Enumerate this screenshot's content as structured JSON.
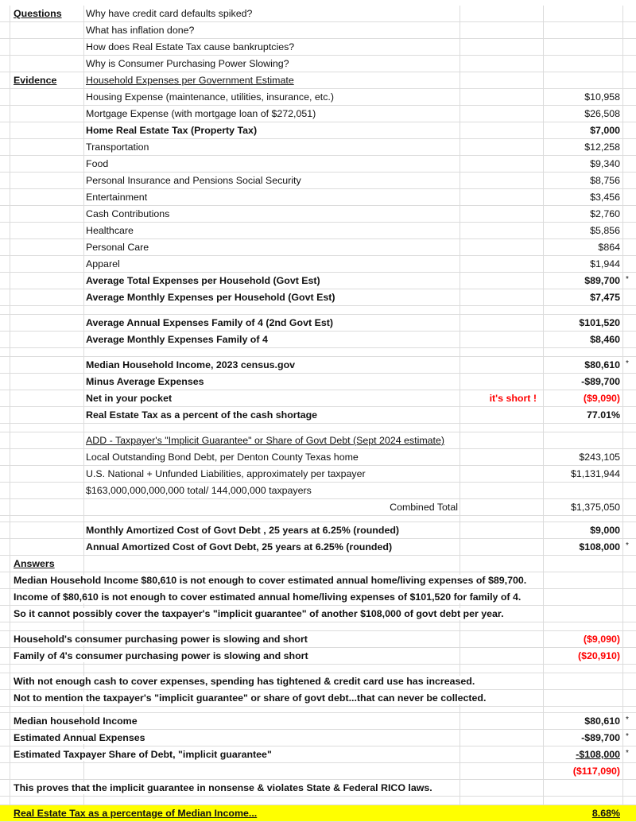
{
  "colors": {
    "negative": "#ff0000",
    "highlight": "#ffff00",
    "gridline": "#dcdcdc"
  },
  "questions": {
    "label": "Questions",
    "items": [
      "Why have credit card defaults spiked?",
      "What has inflation done?",
      "How does Real Estate Tax cause bankruptcies?",
      "Why is Consumer Purchasing Power Slowing?"
    ]
  },
  "evidence": {
    "label": "Evidence",
    "heading": "Household Expenses per Government Estimate",
    "expenses": [
      {
        "label": "Housing Expense  (maintenance, utilities, insurance, etc.)",
        "value": "$10,958"
      },
      {
        "label": "Mortgage Expense (with mortgage loan of  $272,051)",
        "value": "$26,508"
      },
      {
        "label": "Home Real Estate Tax (Property Tax)",
        "value": "$7,000"
      },
      {
        "label": "Transportation",
        "value": "$12,258"
      },
      {
        "label": "Food",
        "value": "$9,340"
      },
      {
        "label": "Personal Insurance and Pensions Social Security",
        "value": "$8,756"
      },
      {
        "label": "Entertainment",
        "value": "$3,456"
      },
      {
        "label": "Cash Contributions",
        "value": "$2,760"
      },
      {
        "label": "Healthcare",
        "value": "$5,856"
      },
      {
        "label": "Personal Care",
        "value": "$864"
      },
      {
        "label": "Apparel",
        "value": "$1,944"
      }
    ],
    "avg_total": {
      "label": "Average Total Expenses per Household (Govt Est)",
      "value": "$89,700",
      "mark": "*"
    },
    "avg_monthly": {
      "label": "Average Monthly Expenses per Household (Govt Est)",
      "value": "$7,475"
    },
    "family_annual": {
      "label": "Average Annual Expenses Family of 4 (2nd Govt Est)",
      "value": "$101,520"
    },
    "family_monthly": {
      "label": "Average Monthly Expenses Family of 4",
      "value": "$8,460"
    },
    "median_income": {
      "label": "Median Household Income, 2023 census.gov",
      "value": "$80,610",
      "mark": "*"
    },
    "minus_expenses": {
      "label": "Minus Average Expenses",
      "value": "-$89,700"
    },
    "net": {
      "label": "Net in your pocket",
      "note": "it's short !",
      "value": "($9,090)"
    },
    "tax_pct_shortage": {
      "label": "Real Estate Tax as a percent of the cash shortage",
      "value": "77.01%"
    }
  },
  "debt": {
    "heading": "ADD - Taxpayer's \"Implicit Guarantee\" or Share of Govt Debt (Sept 2024 estimate)",
    "local": {
      "label": "Local Outstanding Bond Debt, per Denton County Texas home",
      "value": "$243,105"
    },
    "national": {
      "label": "U.S. National + Unfunded Liabilities, approximately per taxpayer",
      "value": "$1,131,944"
    },
    "calc": "$163,000,000,000,000  total/ 144,000,000 taxpayers",
    "combined": {
      "label": "Combined Total",
      "value": "$1,375,050"
    },
    "monthly": {
      "label": "Monthly Amortized Cost of Govt Debt , 25 years at 6.25% (rounded)",
      "value": "$9,000"
    },
    "annual": {
      "label": "Annual Amortized Cost of Govt Debt, 25 years at 6.25% (rounded)",
      "value": "$108,000",
      "mark": "*"
    }
  },
  "answers": {
    "label": "Answers",
    "lines": [
      "Median Household Income $80,610 is not enough to cover estimated annual home/living expenses of $89,700.",
      "Income of $80,610 is not enough to cover estimated annual home/living expenses of $101,520 for family of 4.",
      "So it cannot possibly cover the taxpayer's \"implicit guarantee\" of another $108,000 of govt debt per year."
    ],
    "household_short": {
      "label": "Household's consumer purchasing power is slowing and short",
      "value": "($9,090)"
    },
    "family_short": {
      "label": "Family of 4's consumer purchasing power is slowing and short",
      "value": "($20,910)"
    },
    "notes": [
      "With not enough cash to cover expenses, spending has tightened & credit card use has increased.",
      "Not to mention the taxpayer's \"implicit guarantee\" or share of govt debt...that can never be collected."
    ],
    "summary": [
      {
        "label": "Median household Income",
        "value": "$80,610",
        "mark": "*"
      },
      {
        "label": "Estimated Annual Expenses",
        "value": "-$89,700",
        "mark": "*"
      },
      {
        "label": "Estimated Taxpayer Share of Debt, \"implicit guarantee\"",
        "value": "-$108,000",
        "mark": "*"
      }
    ],
    "summary_total": "($117,090)",
    "conclusion": "This proves that the implicit guarantee in nonsense & violates State & Federal RICO laws.",
    "final": {
      "label": "Real Estate Tax as a percentage of Median Income...",
      "value": "8.68%"
    }
  }
}
